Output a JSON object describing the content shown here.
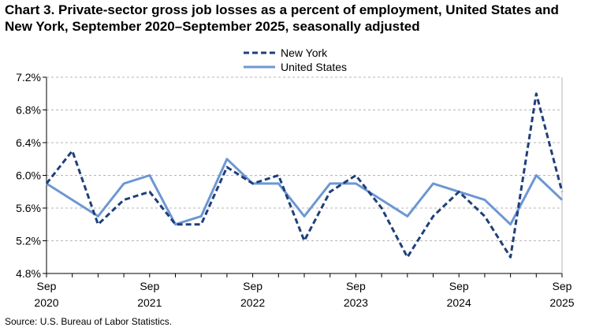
{
  "chart_data": {
    "type": "line",
    "title": "Chart 3. Private-sector gross job losses as a percent of employment, United States and New York, September 2020–September 2025, seasonally adjusted",
    "source": "Source: U.S. Bureau of Labor Statistics.",
    "x": [
      "Sep 2020",
      "Dec 2020",
      "Mar 2021",
      "Jun 2021",
      "Sep 2021",
      "Dec 2021",
      "Mar 2022",
      "Jun 2022",
      "Sep 2022",
      "Dec 2022",
      "Mar 2023",
      "Jun 2023",
      "Sep 2023",
      "Dec 2023",
      "Mar 2024",
      "Jun 2024",
      "Sep 2024",
      "Dec 2024",
      "Mar 2025",
      "Jun 2025",
      "Sep 2025"
    ],
    "x_tick_labels": [
      {
        "index": 0,
        "line1": "Sep",
        "line2": "2020"
      },
      {
        "index": 4,
        "line1": "Sep",
        "line2": "2021"
      },
      {
        "index": 8,
        "line1": "Sep",
        "line2": "2022"
      },
      {
        "index": 12,
        "line1": "Sep",
        "line2": "2023"
      },
      {
        "index": 16,
        "line1": "Sep",
        "line2": "2024"
      },
      {
        "index": 20,
        "line1": "Sep",
        "line2": "2025"
      }
    ],
    "y_ticks": [
      4.8,
      5.2,
      5.6,
      6.0,
      6.4,
      6.8,
      7.2
    ],
    "y_tick_labels": [
      "4.8%",
      "5.2%",
      "5.6%",
      "6.0%",
      "6.4%",
      "6.8%",
      "7.2%"
    ],
    "ylim": [
      4.8,
      7.2
    ],
    "grid": true,
    "legend_position": "top-center",
    "series": [
      {
        "name": "New York",
        "style": "dashed",
        "color": "#1f3f7a",
        "values": [
          5.9,
          6.3,
          5.4,
          5.7,
          5.8,
          5.4,
          5.4,
          6.1,
          5.9,
          6.0,
          5.2,
          5.8,
          6.0,
          5.6,
          5.0,
          5.5,
          5.8,
          5.5,
          5.0,
          7.0,
          5.8
        ]
      },
      {
        "name": "United States",
        "style": "solid",
        "color": "#6d97d3",
        "values": [
          5.9,
          5.7,
          5.5,
          5.9,
          6.0,
          5.4,
          5.5,
          6.2,
          5.9,
          5.9,
          5.5,
          5.9,
          5.9,
          5.7,
          5.5,
          5.9,
          5.8,
          5.7,
          5.4,
          6.0,
          5.7
        ]
      }
    ]
  }
}
